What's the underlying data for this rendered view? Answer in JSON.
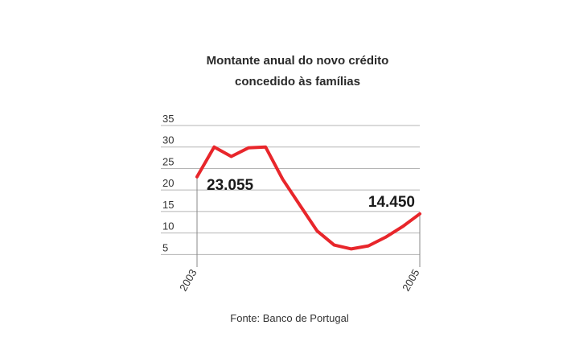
{
  "chart_data": {
    "type": "line",
    "title_lines": [
      "Montante anual do novo crédito",
      "concedido às famílias"
    ],
    "source": "Fonte: Banco de Portugal",
    "x_tick_labels": [
      "2003",
      "2005"
    ],
    "y_ticks": [
      5,
      10,
      15,
      20,
      25,
      30,
      35
    ],
    "ylim": [
      3,
      35
    ],
    "grid": true,
    "colors": {
      "line": "#e8262b",
      "grid": "#b5b5b5",
      "axis": "#888888"
    },
    "series": [
      {
        "values": [
          23.055,
          30.0,
          27.8,
          29.8,
          30.0,
          22.5,
          16.5,
          10.5,
          7.2,
          6.3,
          7.0,
          9.0,
          11.5,
          14.45
        ]
      }
    ],
    "data_labels": [
      {
        "index": 0,
        "text": "23.055"
      },
      {
        "index": 13,
        "text": "14.450"
      }
    ]
  }
}
